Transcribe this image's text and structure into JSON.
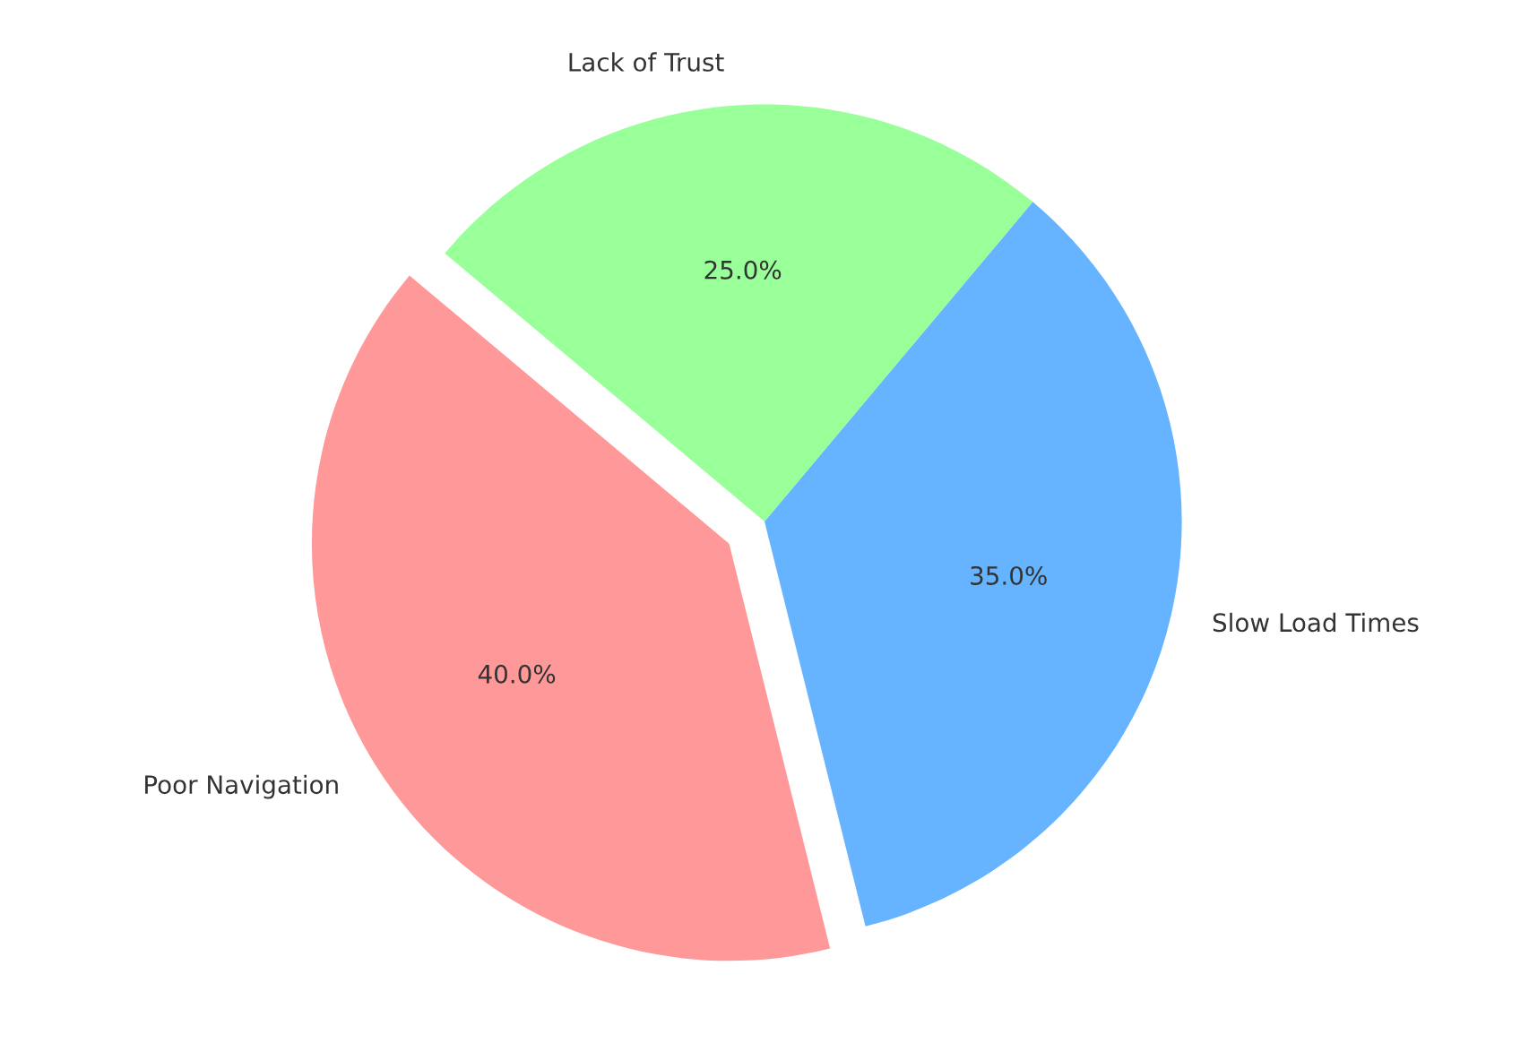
{
  "chart_data": {
    "type": "pie",
    "categories": [
      "Poor Navigation",
      "Slow Load Times",
      "Lack of Trust"
    ],
    "values": [
      40,
      35,
      25
    ],
    "colors": [
      "#ff9999",
      "#66b3ff",
      "#99ff99"
    ],
    "value_labels": [
      "40.0%",
      "35.0%",
      "25.0%"
    ]
  }
}
